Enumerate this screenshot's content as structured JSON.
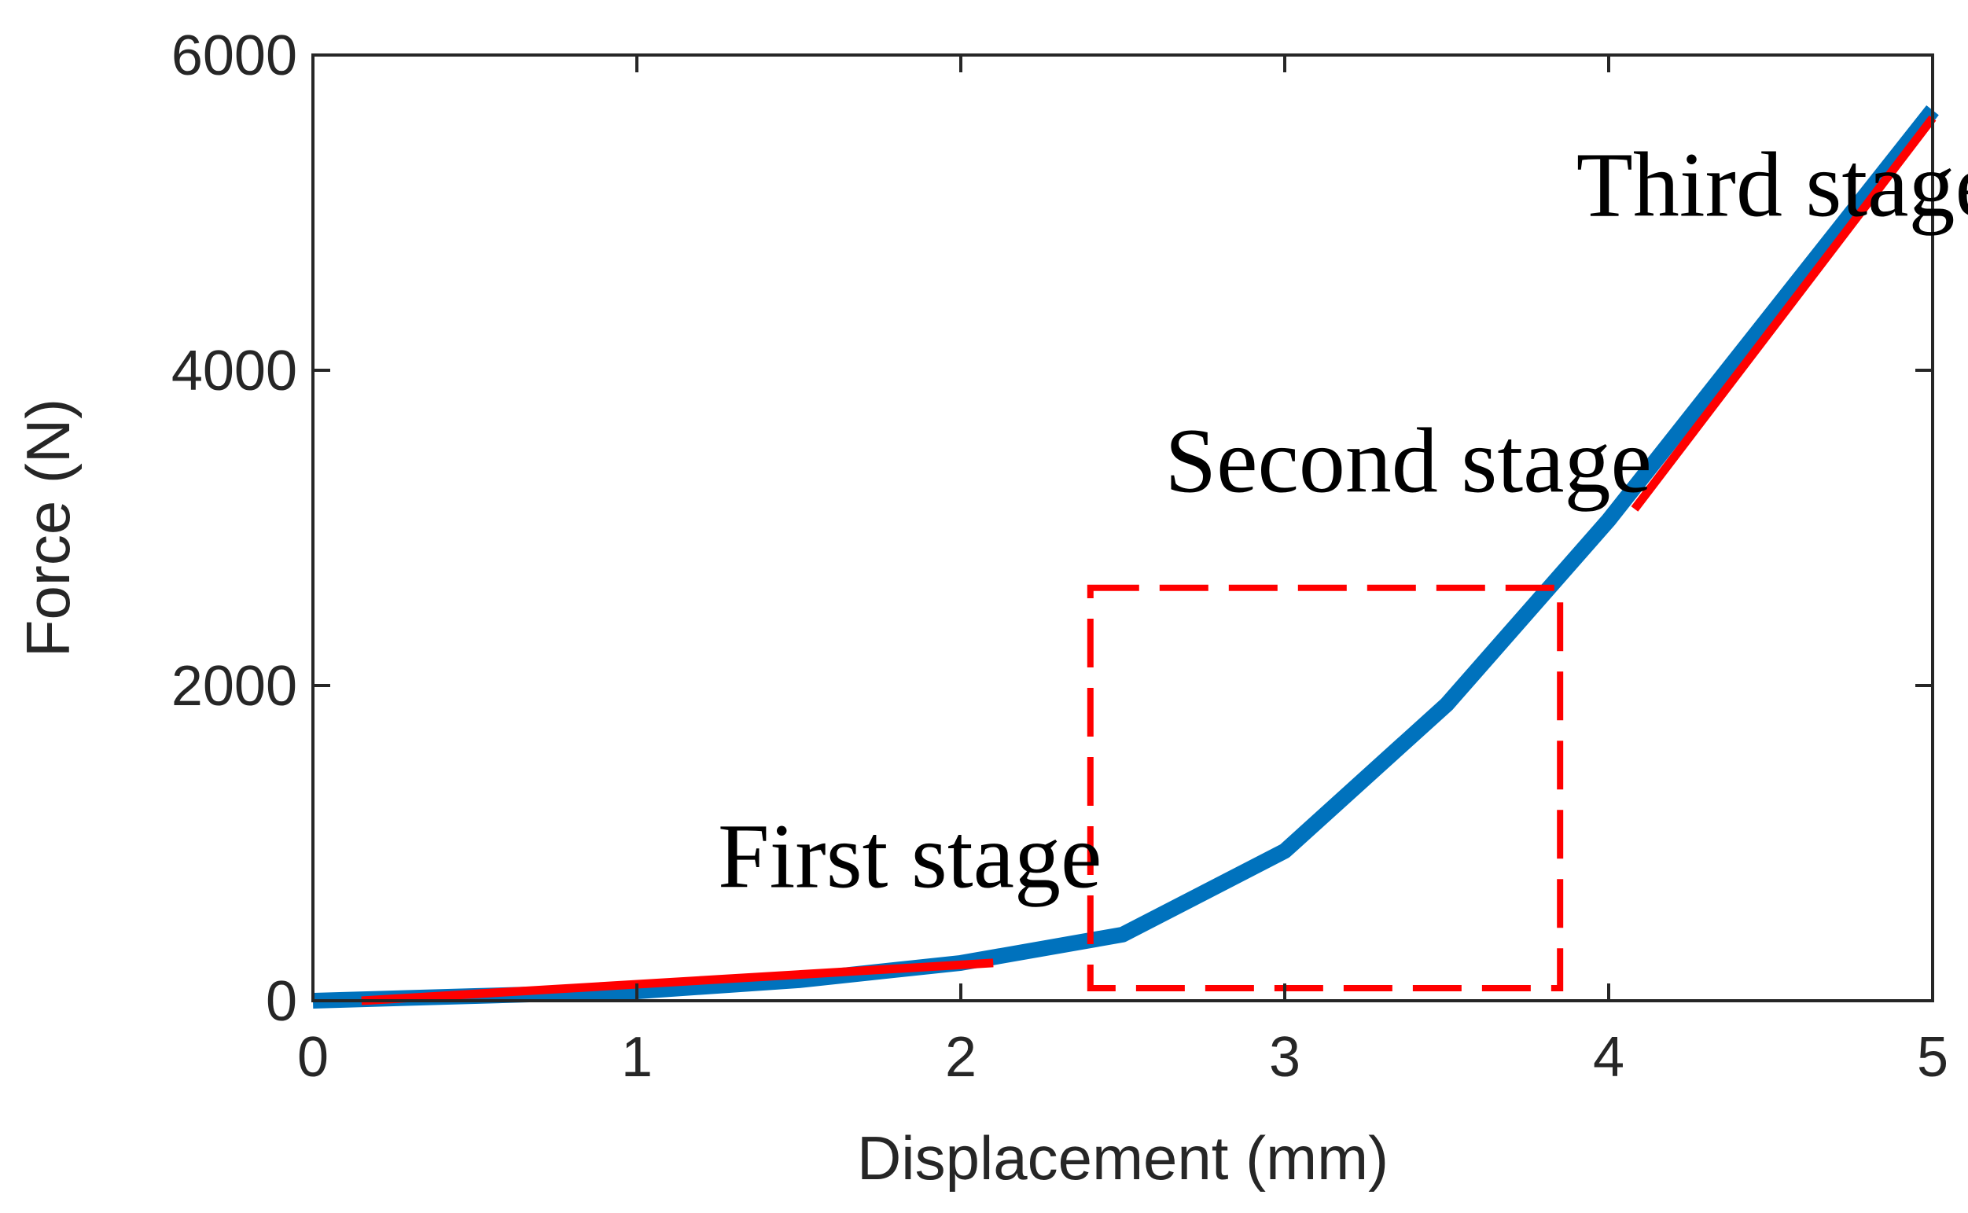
{
  "chart_data": {
    "type": "line",
    "xlabel": "Displacement (mm)",
    "ylabel": "Force (N)",
    "xlim": [
      0,
      5
    ],
    "ylim": [
      0,
      6000
    ],
    "xticks": [
      0,
      1,
      2,
      3,
      4,
      5
    ],
    "yticks": [
      0,
      2000,
      4000,
      6000
    ],
    "xtick_labels": [
      "0",
      "1",
      "2",
      "3",
      "4",
      "5"
    ],
    "ytick_labels": [
      "0",
      "2000",
      "4000",
      "6000"
    ],
    "grid": false,
    "legend": false,
    "series": [
      {
        "color": "#0072bd",
        "x": [
          0,
          0.5,
          1,
          1.5,
          2,
          2.5,
          3,
          3.5,
          4,
          4.5,
          5
        ],
        "y": [
          0,
          30,
          60,
          130,
          240,
          420,
          950,
          1880,
          3050,
          4350,
          5650
        ]
      }
    ],
    "fit_lines": [
      {
        "color": "#ff0000",
        "x": [
          0.15,
          2.1
        ],
        "y": [
          0,
          240
        ]
      },
      {
        "color": "#ff0000",
        "x": [
          4.08,
          5
        ],
        "y": [
          3120,
          5600
        ]
      }
    ],
    "region_box": {
      "color": "#ff0000",
      "style": "dashed",
      "x": [
        2.4,
        3.85
      ],
      "y": [
        80,
        2620
      ]
    },
    "annotations": [
      {
        "text": "First stage",
        "x": 1.25,
        "y": 720
      },
      {
        "text": "Second stage",
        "x": 2.63,
        "y": 3230
      },
      {
        "text": "Third stage",
        "x": 3.9,
        "y": 4980
      }
    ]
  }
}
